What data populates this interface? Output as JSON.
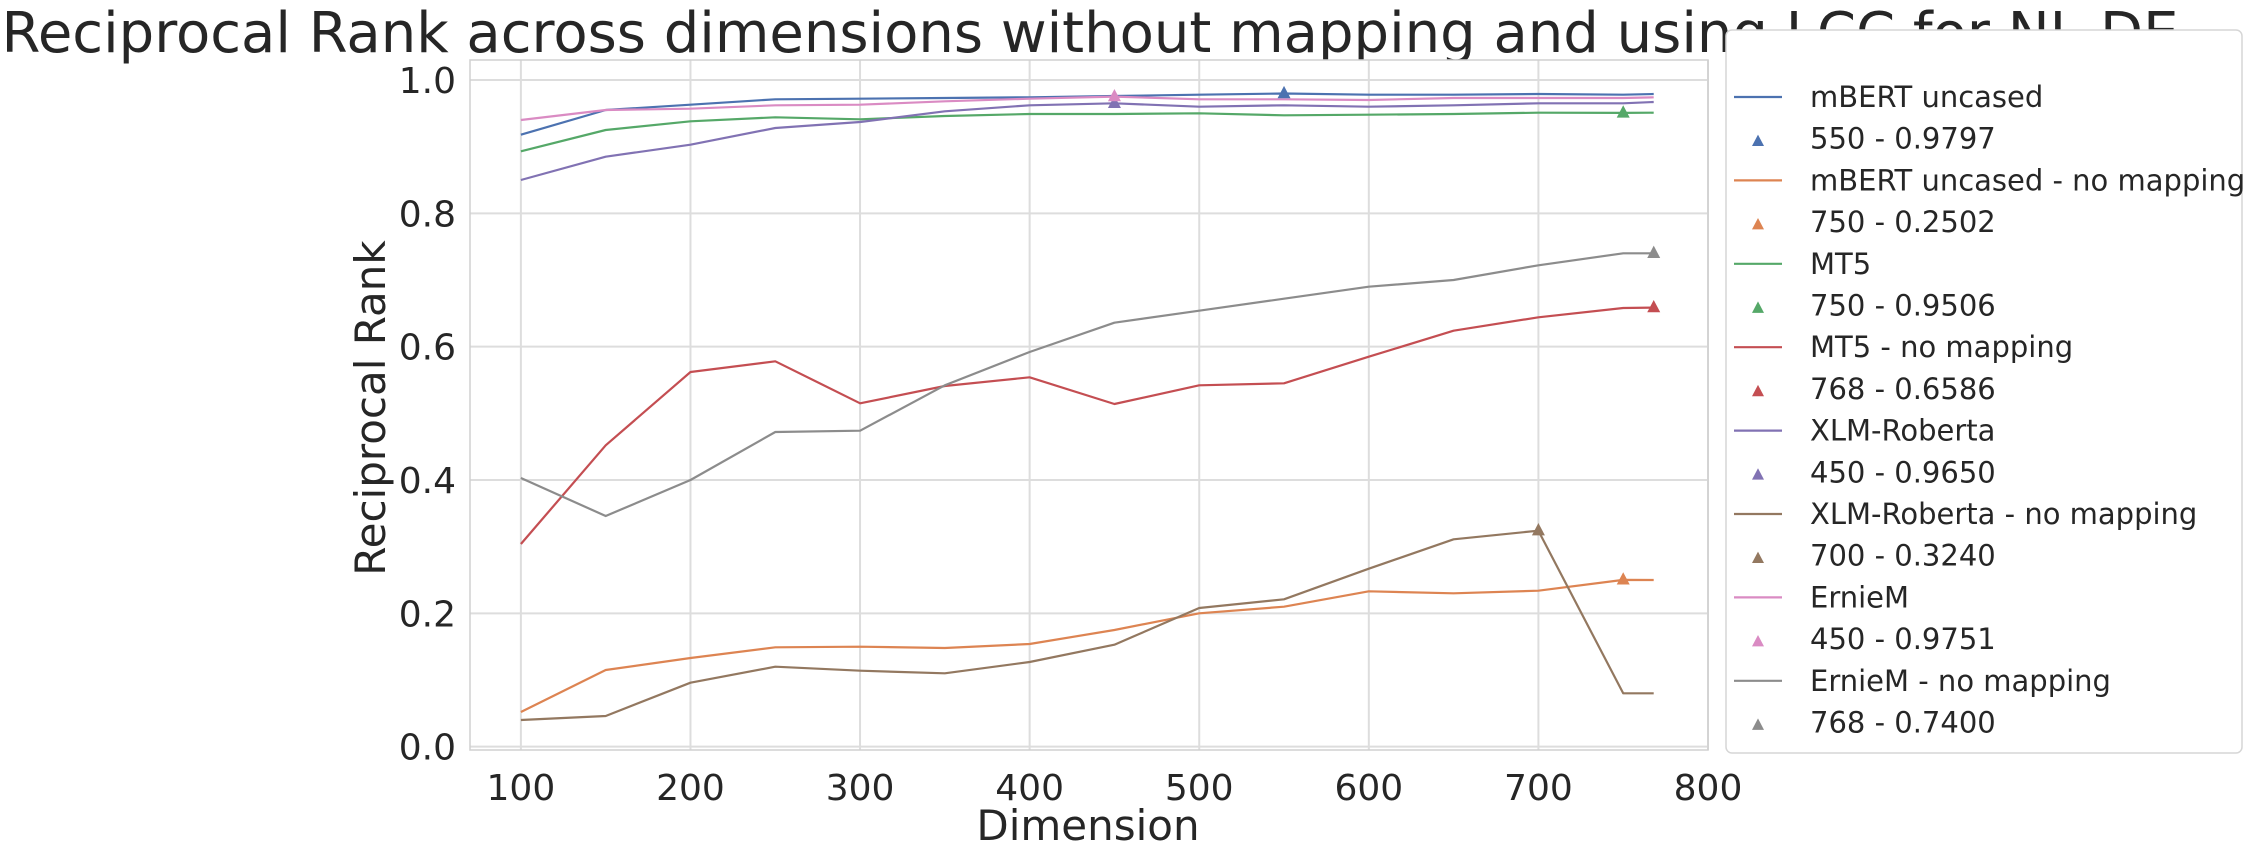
{
  "chart_data": {
    "type": "line",
    "title": "Reciprocal Rank across dimensions without mapping and using LCC for NL-DE",
    "xlabel": "Dimension",
    "ylabel": "Reciprocal Rank",
    "xlim": [
      70,
      800
    ],
    "ylim": [
      -0.005,
      1.03
    ],
    "xticks": [
      100,
      200,
      300,
      400,
      500,
      600,
      700,
      800
    ],
    "yticks": [
      0.0,
      0.2,
      0.4,
      0.6,
      0.8,
      1.0
    ],
    "xtick_labels": [
      "100",
      "200",
      "300",
      "400",
      "500",
      "600",
      "700",
      "800"
    ],
    "ytick_labels": [
      "0.0",
      "0.2",
      "0.4",
      "0.6",
      "0.8",
      "1.0"
    ],
    "grid": true,
    "legend_position": "outside-right",
    "x": [
      100,
      150,
      200,
      250,
      300,
      350,
      400,
      450,
      500,
      550,
      600,
      650,
      700,
      750,
      768
    ],
    "series": [
      {
        "name": "mBERT uncased",
        "color": "#4c72b0",
        "values": [
          0.918,
          0.955,
          0.963,
          0.971,
          0.972,
          0.973,
          0.974,
          0.976,
          0.978,
          0.9797,
          0.978,
          0.978,
          0.979,
          0.978,
          0.979
        ],
        "marker": {
          "label": "550 - 0.9797",
          "x": 550,
          "y": 0.9797
        }
      },
      {
        "name": "mBERT uncased - no mapping",
        "color": "#dd8452",
        "values": [
          0.052,
          0.115,
          0.133,
          0.149,
          0.15,
          0.148,
          0.154,
          0.175,
          0.2,
          0.21,
          0.233,
          0.23,
          0.234,
          0.2502,
          0.25
        ],
        "marker": {
          "label": "750 - 0.2502",
          "x": 750,
          "y": 0.2502
        }
      },
      {
        "name": "MT5",
        "color": "#55a868",
        "values": [
          0.893,
          0.925,
          0.938,
          0.944,
          0.941,
          0.946,
          0.949,
          0.949,
          0.95,
          0.947,
          0.948,
          0.949,
          0.951,
          0.9506,
          0.951
        ],
        "marker": {
          "label": "750 - 0.9506",
          "x": 750,
          "y": 0.9506
        }
      },
      {
        "name": "MT5 - no mapping",
        "color": "#c44e52",
        "values": [
          0.304,
          0.452,
          0.562,
          0.578,
          0.515,
          0.541,
          0.554,
          0.514,
          0.542,
          0.545,
          0.585,
          0.624,
          0.644,
          0.658,
          0.6586
        ],
        "marker": {
          "label": "768 - 0.6586",
          "x": 768,
          "y": 0.6586
        }
      },
      {
        "name": "XLM-Roberta",
        "color": "#8172b3",
        "values": [
          0.85,
          0.885,
          0.903,
          0.928,
          0.937,
          0.953,
          0.962,
          0.965,
          0.96,
          0.962,
          0.96,
          0.962,
          0.965,
          0.965,
          0.967
        ],
        "marker": {
          "label": "450 - 0.9650",
          "x": 450,
          "y": 0.965
        }
      },
      {
        "name": "XLM-Roberta - no mapping",
        "color": "#937860",
        "values": [
          0.04,
          0.046,
          0.096,
          0.12,
          0.114,
          0.11,
          0.127,
          0.153,
          0.208,
          0.221,
          0.267,
          0.311,
          0.324,
          0.08,
          0.08
        ],
        "marker": {
          "label": "700 - 0.3240",
          "x": 700,
          "y": 0.324
        }
      },
      {
        "name": "ErnieM",
        "color": "#da8bc3",
        "values": [
          0.94,
          0.955,
          0.957,
          0.962,
          0.963,
          0.968,
          0.972,
          0.9751,
          0.971,
          0.971,
          0.97,
          0.973,
          0.973,
          0.973,
          0.974
        ],
        "marker": {
          "label": "450 - 0.9751",
          "x": 450,
          "y": 0.9751
        }
      },
      {
        "name": "ErnieM - no mapping",
        "color": "#8c8c8c",
        "values": [
          0.403,
          0.346,
          0.4,
          0.472,
          0.474,
          0.542,
          0.592,
          0.636,
          0.654,
          0.672,
          0.69,
          0.7,
          0.722,
          0.74,
          0.74
        ],
        "marker": {
          "label": "768 - 0.7400",
          "x": 768,
          "y": 0.74
        }
      }
    ]
  }
}
